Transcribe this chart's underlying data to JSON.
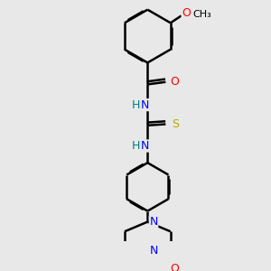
{
  "bg_color": "#e8e8e8",
  "bond_color": "#000000",
  "bond_width": 1.8,
  "atom_colors": {
    "C": "#000000",
    "N": "#0000ff",
    "O": "#ff0000",
    "S": "#bbaa00",
    "H": "#008080"
  },
  "font_size": 8.5,
  "dbo": 0.035,
  "figsize": [
    3.0,
    3.0
  ],
  "dpi": 100,
  "xlim": [
    0,
    10
  ],
  "ylim": [
    0,
    10
  ]
}
